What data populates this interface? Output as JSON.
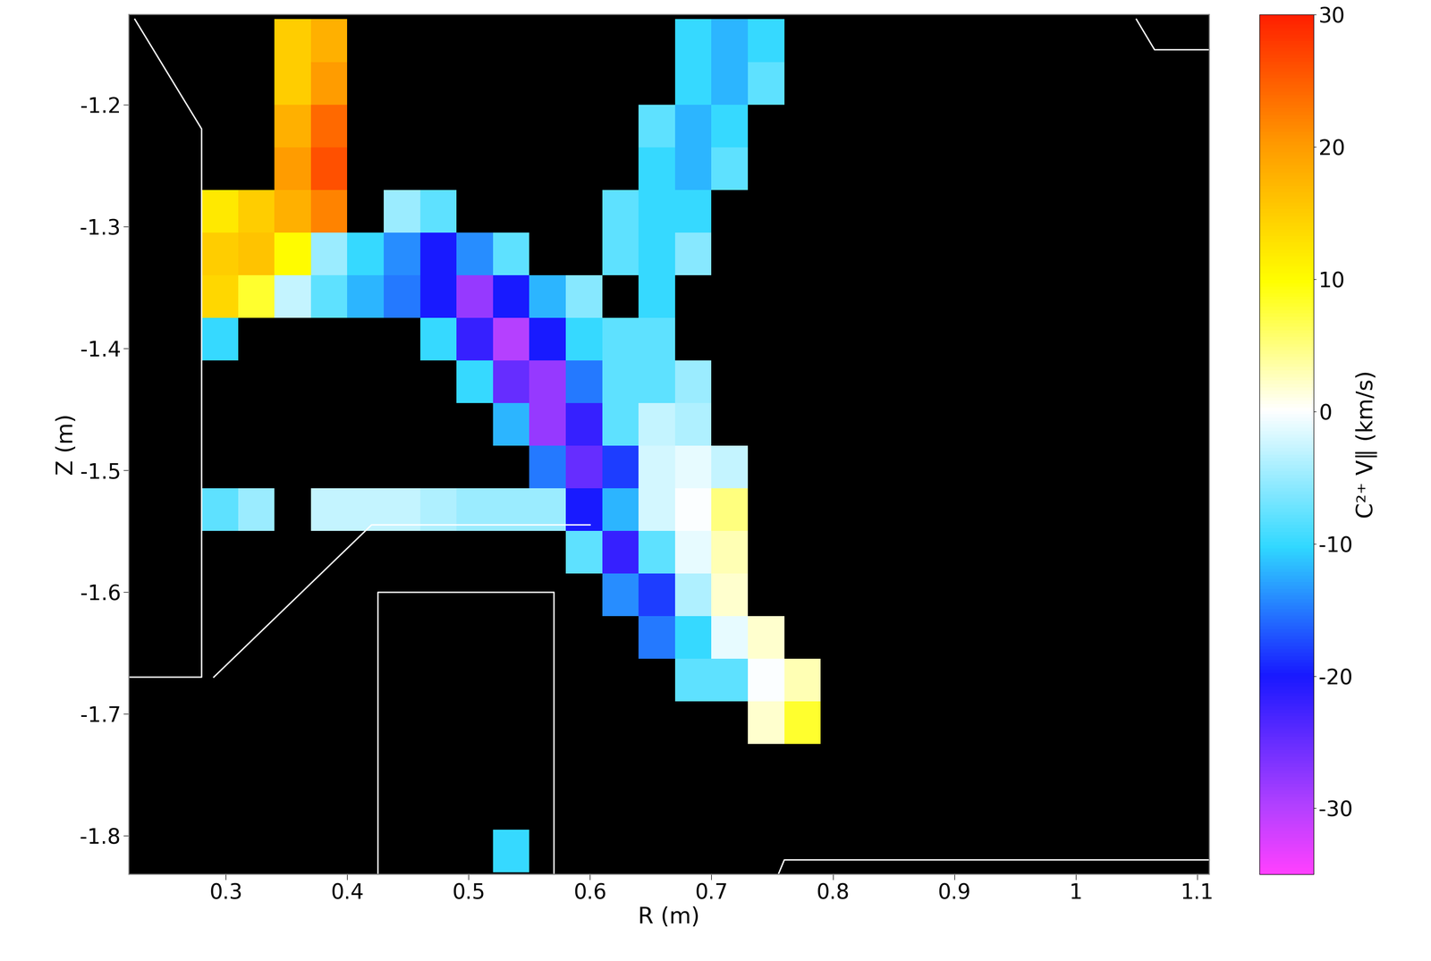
{
  "chart_data": {
    "type": "heatmap",
    "xlabel": "R (m)",
    "ylabel": "Z (m)",
    "colorbar_label": "C²⁺ V∥ (km/s)",
    "xlim": [
      0.22,
      1.11
    ],
    "ylim": [
      -1.832,
      -1.126
    ],
    "xticks": [
      0.3,
      0.4,
      0.5,
      0.6,
      0.7,
      0.8,
      0.9,
      1,
      1.1
    ],
    "yticks": [
      -1.8,
      -1.7,
      -1.6,
      -1.5,
      -1.4,
      -1.3,
      -1.2
    ],
    "colorbar_range": [
      -35,
      30
    ],
    "colorbar_ticks": [
      -30,
      -20,
      -10,
      0,
      10,
      20,
      30
    ],
    "x_edges": [
      0.22,
      0.25,
      0.28,
      0.31,
      0.34,
      0.37,
      0.4,
      0.43,
      0.46,
      0.49,
      0.52,
      0.55,
      0.58,
      0.61,
      0.64,
      0.67,
      0.7,
      0.73,
      0.76,
      0.79,
      0.82,
      0.85,
      0.88,
      0.91,
      0.94,
      0.97,
      1.0,
      1.03,
      1.06,
      1.09,
      1.12
    ],
    "y_edges": [
      -1.13,
      -1.165,
      -1.2,
      -1.235,
      -1.27,
      -1.305,
      -1.34,
      -1.375,
      -1.41,
      -1.445,
      -1.48,
      -1.515,
      -1.55,
      -1.585,
      -1.62,
      -1.655,
      -1.69,
      -1.725,
      -1.76,
      -1.795,
      -1.83
    ],
    "cells": [
      [
        null,
        null,
        null,
        null,
        15,
        18,
        null,
        null,
        null,
        null,
        null,
        null,
        null,
        null,
        null,
        -10,
        -12,
        -10,
        null,
        null,
        null,
        null,
        null,
        null,
        null,
        null,
        null,
        null,
        null,
        null
      ],
      [
        null,
        null,
        null,
        null,
        15,
        20,
        null,
        null,
        null,
        null,
        null,
        null,
        null,
        null,
        null,
        -10,
        -12,
        -8,
        null,
        null,
        null,
        null,
        null,
        null,
        null,
        null,
        null,
        null,
        null,
        null
      ],
      [
        null,
        null,
        null,
        null,
        18,
        24,
        null,
        null,
        null,
        null,
        null,
        null,
        null,
        null,
        -8,
        -12,
        -10,
        null,
        null,
        null,
        null,
        null,
        null,
        null,
        null,
        null,
        null,
        null,
        null,
        null
      ],
      [
        null,
        null,
        null,
        null,
        20,
        26,
        null,
        null,
        null,
        null,
        null,
        null,
        null,
        null,
        -10,
        -12,
        -8,
        null,
        null,
        null,
        null,
        null,
        null,
        null,
        null,
        null,
        null,
        null,
        null,
        null
      ],
      [
        null,
        null,
        12,
        15,
        18,
        22,
        null,
        -5,
        -8,
        null,
        null,
        null,
        null,
        -8,
        -10,
        -10,
        null,
        null,
        null,
        null,
        null,
        null,
        null,
        null,
        null,
        null,
        null,
        null,
        null,
        null
      ],
      [
        null,
        null,
        15,
        16,
        10,
        -5,
        -10,
        -14,
        -20,
        -14,
        -8,
        null,
        null,
        -8,
        -10,
        -6,
        null,
        null,
        null,
        null,
        null,
        null,
        null,
        null,
        null,
        null,
        null,
        null,
        null,
        null
      ],
      [
        null,
        null,
        14,
        8,
        -3,
        -8,
        -12,
        -15,
        -20,
        -28,
        -20,
        -12,
        -6,
        null,
        -10,
        null,
        null,
        null,
        null,
        null,
        null,
        null,
        null,
        null,
        null,
        null,
        null,
        null,
        null,
        null
      ],
      [
        null,
        null,
        -10,
        null,
        null,
        null,
        null,
        null,
        -10,
        -22,
        -30,
        -20,
        -10,
        -8,
        -8,
        null,
        null,
        null,
        null,
        null,
        null,
        null,
        null,
        null,
        null,
        null,
        null,
        null,
        null,
        null
      ],
      [
        null,
        null,
        null,
        null,
        null,
        null,
        null,
        null,
        null,
        -10,
        -25,
        -28,
        -15,
        -8,
        -8,
        -5,
        null,
        null,
        null,
        null,
        null,
        null,
        null,
        null,
        null,
        null,
        null,
        null,
        null,
        null
      ],
      [
        null,
        null,
        null,
        null,
        null,
        null,
        null,
        null,
        null,
        null,
        -12,
        -28,
        -22,
        -8,
        -3,
        -4,
        null,
        null,
        null,
        null,
        null,
        null,
        null,
        null,
        null,
        null,
        null,
        null,
        null,
        null
      ],
      [
        null,
        null,
        null,
        null,
        null,
        null,
        null,
        null,
        null,
        null,
        null,
        -15,
        -25,
        -18,
        -2,
        -1,
        -3,
        null,
        null,
        null,
        null,
        null,
        null,
        null,
        null,
        null,
        null,
        null,
        null,
        null
      ],
      [
        null,
        null,
        -8,
        -5,
        null,
        -3,
        -3,
        -3,
        -4,
        -5,
        -5,
        -5,
        -20,
        -12,
        -2,
        0,
        5,
        null,
        null,
        null,
        null,
        null,
        null,
        null,
        null,
        null,
        null,
        null,
        null,
        null
      ],
      [
        null,
        null,
        null,
        null,
        null,
        null,
        null,
        null,
        null,
        null,
        null,
        null,
        -8,
        -22,
        -8,
        -1,
        3,
        null,
        null,
        null,
        null,
        null,
        null,
        null,
        null,
        null,
        null,
        null,
        null,
        null
      ],
      [
        null,
        null,
        null,
        null,
        null,
        null,
        null,
        null,
        null,
        null,
        null,
        null,
        null,
        -14,
        -18,
        -4,
        2,
        null,
        null,
        null,
        null,
        null,
        null,
        null,
        null,
        null,
        null,
        null,
        null,
        null
      ],
      [
        null,
        null,
        null,
        null,
        null,
        null,
        null,
        null,
        null,
        null,
        null,
        null,
        null,
        null,
        -15,
        -10,
        -1,
        2,
        null,
        null,
        null,
        null,
        null,
        null,
        null,
        null,
        null,
        null,
        null,
        null
      ],
      [
        null,
        null,
        null,
        null,
        null,
        null,
        null,
        null,
        null,
        null,
        null,
        null,
        null,
        null,
        null,
        -8,
        -8,
        0,
        3,
        null,
        null,
        null,
        null,
        null,
        null,
        null,
        null,
        null,
        null,
        null
      ],
      [
        null,
        null,
        null,
        null,
        null,
        null,
        null,
        null,
        null,
        null,
        null,
        null,
        null,
        null,
        null,
        null,
        null,
        2,
        8,
        null,
        null,
        null,
        null,
        null,
        null,
        null,
        null,
        null,
        null,
        null
      ],
      [
        null,
        null,
        null,
        null,
        null,
        null,
        null,
        null,
        null,
        null,
        null,
        null,
        null,
        null,
        null,
        null,
        null,
        null,
        null,
        null,
        null,
        null,
        null,
        null,
        null,
        null,
        null,
        null,
        null,
        null
      ],
      [
        null,
        null,
        null,
        null,
        null,
        null,
        null,
        null,
        null,
        null,
        null,
        null,
        null,
        null,
        null,
        null,
        null,
        null,
        null,
        null,
        null,
        null,
        null,
        null,
        null,
        null,
        null,
        null,
        null,
        null
      ],
      [
        null,
        null,
        null,
        null,
        null,
        null,
        null,
        null,
        null,
        null,
        -10,
        null,
        null,
        null,
        null,
        null,
        null,
        null,
        null,
        null,
        null,
        null,
        null,
        null,
        null,
        null,
        null,
        null,
        null,
        null
      ]
    ],
    "wall": [
      [
        [
          0.225,
          0.28,
          0.28,
          0.22
        ],
        [
          -1.13,
          -1.22,
          -1.67,
          -1.67
        ]
      ],
      [
        [
          0.29,
          0.42,
          0.6
        ],
        [
          -1.67,
          -1.545,
          -1.545
        ]
      ],
      [
        [
          0.425,
          0.425,
          0.57,
          0.57
        ],
        [
          -1.832,
          -1.6,
          -1.6,
          -1.832
        ]
      ],
      [
        [
          0.755,
          0.76,
          1.11
        ],
        [
          -1.832,
          -1.82,
          -1.82
        ]
      ],
      [
        [
          1.05,
          1.065,
          1.11
        ],
        [
          -1.13,
          -1.155,
          -1.155
        ]
      ]
    ]
  }
}
